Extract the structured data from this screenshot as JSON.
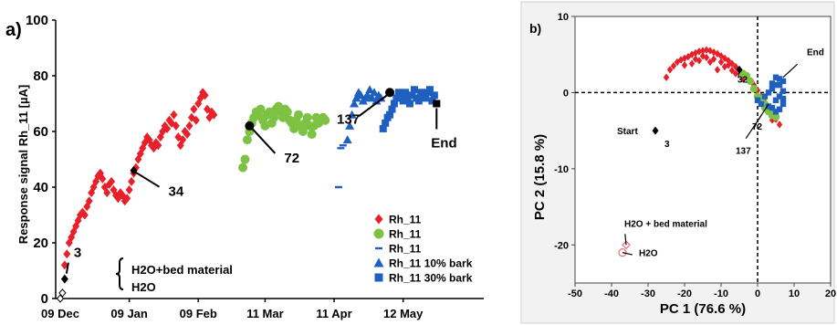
{
  "colors": {
    "red": "#e8202a",
    "green": "#7dc242",
    "blue": "#1f5fbf",
    "black": "#000000",
    "pink": "#e8707a"
  },
  "chart_data": [
    {
      "type": "scatter",
      "panel_label": "a)",
      "ylabel": "Response signal Rh_11 [µA]",
      "xlabel": "",
      "ylim": [
        0,
        100
      ],
      "yticks": [
        0,
        20,
        40,
        60,
        80,
        100
      ],
      "xlim": [
        0,
        182
      ],
      "xticks": [
        {
          "label": "09 Dec",
          "day": 0
        },
        {
          "label": "09 Jan",
          "day": 31
        },
        {
          "label": "09 Feb",
          "day": 62
        },
        {
          "label": "11 Mar",
          "day": 92
        },
        {
          "label": "11 Apr",
          "day": 123
        },
        {
          "label": "12 May",
          "day": 154
        }
      ],
      "series": [
        {
          "name": "Rh_11",
          "marker": "diamond",
          "color": "#e8202a",
          "points": [
            [
              2,
              12
            ],
            [
              3,
              16
            ],
            [
              4,
              20
            ],
            [
              5,
              22
            ],
            [
              6,
              24
            ],
            [
              7,
              26
            ],
            [
              8,
              28
            ],
            [
              9,
              30
            ],
            [
              10,
              31
            ],
            [
              11,
              30
            ],
            [
              12,
              33
            ],
            [
              13,
              35
            ],
            [
              14,
              38
            ],
            [
              15,
              40
            ],
            [
              16,
              42
            ],
            [
              17,
              44
            ],
            [
              18,
              45
            ],
            [
              19,
              43
            ],
            [
              20,
              40
            ],
            [
              21,
              38
            ],
            [
              22,
              41
            ],
            [
              23,
              42
            ],
            [
              24,
              39
            ],
            [
              25,
              37
            ],
            [
              26,
              36
            ],
            [
              27,
              38
            ],
            [
              28,
              37
            ],
            [
              29,
              35
            ],
            [
              30,
              36
            ],
            [
              31,
              39
            ],
            [
              32,
              42
            ],
            [
              33,
              45
            ],
            [
              34,
              47
            ],
            [
              35,
              50
            ],
            [
              36,
              52
            ],
            [
              37,
              54
            ],
            [
              38,
              56
            ],
            [
              39,
              58
            ],
            [
              40,
              57
            ],
            [
              41,
              55
            ],
            [
              42,
              54
            ],
            [
              43,
              56
            ],
            [
              44,
              55
            ],
            [
              45,
              58
            ],
            [
              46,
              60
            ],
            [
              47,
              62
            ],
            [
              48,
              61
            ],
            [
              49,
              64
            ],
            [
              50,
              63
            ],
            [
              51,
              66
            ],
            [
              52,
              62
            ],
            [
              53,
              58
            ],
            [
              54,
              55
            ],
            [
              55,
              57
            ],
            [
              56,
              60
            ],
            [
              57,
              59
            ],
            [
              58,
              62
            ],
            [
              59,
              65
            ],
            [
              60,
              68
            ],
            [
              61,
              64
            ],
            [
              62,
              70
            ],
            [
              63,
              72
            ],
            [
              64,
              74
            ],
            [
              65,
              73
            ],
            [
              66,
              68
            ],
            [
              67,
              65
            ],
            [
              68,
              67
            ],
            [
              69,
              66
            ]
          ]
        },
        {
          "name": "Rh_11",
          "marker": "circle",
          "color": "#7dc242",
          "points": [
            [
              82,
              47
            ],
            [
              83,
              50
            ],
            [
              84,
              57
            ],
            [
              85,
              60
            ],
            [
              86,
              63
            ],
            [
              87,
              65
            ],
            [
              88,
              67
            ],
            [
              89,
              66
            ],
            [
              90,
              68
            ],
            [
              91,
              64
            ],
            [
              92,
              62
            ],
            [
              93,
              66
            ],
            [
              94,
              67
            ],
            [
              95,
              63
            ],
            [
              96,
              65
            ],
            [
              97,
              68
            ],
            [
              98,
              69
            ],
            [
              99,
              67
            ],
            [
              100,
              65
            ],
            [
              101,
              68
            ],
            [
              102,
              67
            ],
            [
              103,
              64
            ],
            [
              104,
              63
            ],
            [
              105,
              61
            ],
            [
              106,
              64
            ],
            [
              107,
              66
            ],
            [
              108,
              62
            ],
            [
              109,
              60
            ],
            [
              110,
              63
            ],
            [
              111,
              65
            ],
            [
              112,
              62
            ],
            [
              113,
              59
            ],
            [
              114,
              62
            ],
            [
              115,
              65
            ],
            [
              116,
              63
            ],
            [
              118,
              65
            ],
            [
              119,
              64
            ]
          ]
        },
        {
          "name": "Rh_11",
          "marker": "dash",
          "color": "#1f5fbf",
          "points": [
            [
              125,
              40
            ],
            [
              126,
              54
            ],
            [
              127,
              55
            ]
          ]
        },
        {
          "name": "Rh_11 10% bark",
          "marker": "triangle",
          "color": "#1f5fbf",
          "points": [
            [
              129,
              57
            ],
            [
              130,
              62
            ],
            [
              131,
              66
            ],
            [
              132,
              70
            ],
            [
              133,
              72
            ],
            [
              134,
              74
            ],
            [
              135,
              73
            ],
            [
              136,
              71
            ],
            [
              137,
              72
            ],
            [
              138,
              73
            ],
            [
              139,
              75
            ],
            [
              140,
              72
            ],
            [
              141,
              74
            ],
            [
              142,
              71
            ],
            [
              143,
              73
            ],
            [
              144,
              72
            ]
          ]
        },
        {
          "name": "Rh_11 30% bark",
          "marker": "square",
          "color": "#1f5fbf",
          "points": [
            [
              145,
              61
            ],
            [
              146,
              63
            ],
            [
              147,
              65
            ],
            [
              148,
              66
            ],
            [
              149,
              68
            ],
            [
              150,
              70
            ],
            [
              151,
              72
            ],
            [
              152,
              74
            ],
            [
              153,
              73
            ],
            [
              154,
              71
            ],
            [
              155,
              74
            ],
            [
              156,
              72
            ],
            [
              157,
              70
            ],
            [
              158,
              73
            ],
            [
              159,
              75
            ],
            [
              160,
              72
            ],
            [
              161,
              71
            ],
            [
              162,
              74
            ],
            [
              163,
              73
            ],
            [
              164,
              72
            ],
            [
              165,
              74
            ],
            [
              166,
              75
            ],
            [
              167,
              71
            ],
            [
              168,
              73
            ],
            [
              169,
              70
            ]
          ]
        }
      ],
      "highlights": [
        {
          "label": "3",
          "day": 2,
          "value": 7,
          "marker": "diamond"
        },
        {
          "label": "34",
          "day": 33,
          "value": 46,
          "marker": "diamond"
        },
        {
          "label": "72",
          "day": 85,
          "value": 62,
          "marker": "circle"
        },
        {
          "label": "137",
          "day": 148,
          "value": 74,
          "marker": "circle"
        },
        {
          "label": "End",
          "day": 169,
          "value": 70,
          "marker": "square"
        }
      ],
      "reference_points": [
        {
          "label": "H2O+bed material",
          "day": 1,
          "value": 2
        },
        {
          "label": "H2O",
          "day": 0,
          "value": 0
        }
      ]
    },
    {
      "type": "scatter",
      "panel_label": "b)",
      "xlabel": "PC 1  (76.6 %)",
      "ylabel": "PC 2  (15.8 %)",
      "xlim": [
        -50,
        20
      ],
      "ylim": [
        -25,
        10
      ],
      "xticks": [
        -50,
        -40,
        -30,
        -20,
        -10,
        0,
        10,
        20
      ],
      "yticks": [
        10,
        0,
        -10,
        -20
      ],
      "series": [
        {
          "color": "#e8202a",
          "marker": "diamond",
          "points": [
            [
              -25,
              2
            ],
            [
              -24,
              3
            ],
            [
              -23,
              3.5
            ],
            [
              -22,
              4
            ],
            [
              -21,
              4.3
            ],
            [
              -20,
              4.5
            ],
            [
              -19,
              4.7
            ],
            [
              -18,
              5
            ],
            [
              -17,
              5.2
            ],
            [
              -16,
              5.4
            ],
            [
              -15,
              5.5
            ],
            [
              -14,
              5.6
            ],
            [
              -13,
              5.5
            ],
            [
              -12,
              5.3
            ],
            [
              -11,
              5.1
            ],
            [
              -10,
              4.8
            ],
            [
              -9,
              4.5
            ],
            [
              -8,
              4.2
            ],
            [
              -7,
              3.8
            ],
            [
              -6,
              3.4
            ],
            [
              -5,
              3
            ],
            [
              -4,
              2.5
            ],
            [
              -3,
              2
            ],
            [
              -2,
              1.5
            ],
            [
              -1,
              1
            ],
            [
              0,
              0.3
            ],
            [
              1,
              -0.5
            ],
            [
              2,
              -1.2
            ],
            [
              3,
              -2
            ],
            [
              4,
              -2.8
            ],
            [
              5,
              -3.5
            ],
            [
              -14,
              4.6
            ],
            [
              -12,
              4.4
            ],
            [
              -16,
              4.2
            ],
            [
              -10,
              4
            ],
            [
              -8,
              3.6
            ],
            [
              -18,
              3.8
            ],
            [
              -11,
              3
            ],
            [
              -6,
              2.5
            ],
            [
              -4,
              1.8
            ],
            [
              -13,
              4
            ],
            [
              -9,
              3.4
            ],
            [
              -7,
              2.9
            ],
            [
              -20,
              3.6
            ],
            [
              -15,
              4.8
            ],
            [
              -17,
              4.4
            ],
            [
              6,
              -4.2
            ],
            [
              4,
              -3.6
            ]
          ]
        },
        {
          "color": "#7dc242",
          "marker": "circle",
          "points": [
            [
              -4,
              2.5
            ],
            [
              -3,
              2.2
            ],
            [
              -2,
              1.5
            ],
            [
              -1,
              0.5
            ],
            [
              0,
              -0.5
            ],
            [
              1,
              -1.2
            ],
            [
              2,
              -2
            ],
            [
              3,
              -2.5
            ],
            [
              4,
              -3
            ],
            [
              2,
              -1.5
            ],
            [
              3,
              -2.2
            ],
            [
              1,
              -0.8
            ],
            [
              4,
              -2.5
            ],
            [
              5,
              -3.2
            ]
          ]
        },
        {
          "color": "#1f5fbf",
          "marker": "square",
          "points": [
            [
              0,
              -1
            ],
            [
              1,
              -1.5
            ],
            [
              2,
              -0.5
            ],
            [
              3,
              0
            ],
            [
              4,
              0.5
            ],
            [
              5,
              1
            ],
            [
              5,
              -1
            ],
            [
              6,
              -0.5
            ],
            [
              7,
              0.2
            ],
            [
              7,
              1.5
            ],
            [
              6,
              1.8
            ],
            [
              5,
              2
            ],
            [
              4,
              -2
            ],
            [
              5,
              -2.5
            ],
            [
              6,
              -2.2
            ],
            [
              7,
              -1.5
            ],
            [
              4,
              1.2
            ],
            [
              3,
              -1.8
            ],
            [
              6,
              1
            ],
            [
              7,
              -0.8
            ]
          ]
        }
      ],
      "annotations": [
        {
          "label": "32",
          "pc1": -5,
          "pc2": 3
        },
        {
          "label": "End",
          "pc1": 7,
          "pc2": 2
        },
        {
          "label": "72",
          "pc1": 3,
          "pc2": -1.5
        },
        {
          "label": "137",
          "pc1": 1,
          "pc2": -3
        },
        {
          "label": "Start",
          "pc1": -28,
          "pc2": -5
        },
        {
          "label": "3",
          "pc1": -28,
          "pc2": -5
        },
        {
          "label": "H2O + bed material",
          "pc1": -36,
          "pc2": -20
        },
        {
          "label": "H2O",
          "pc1": -37,
          "pc2": -21
        }
      ]
    }
  ]
}
